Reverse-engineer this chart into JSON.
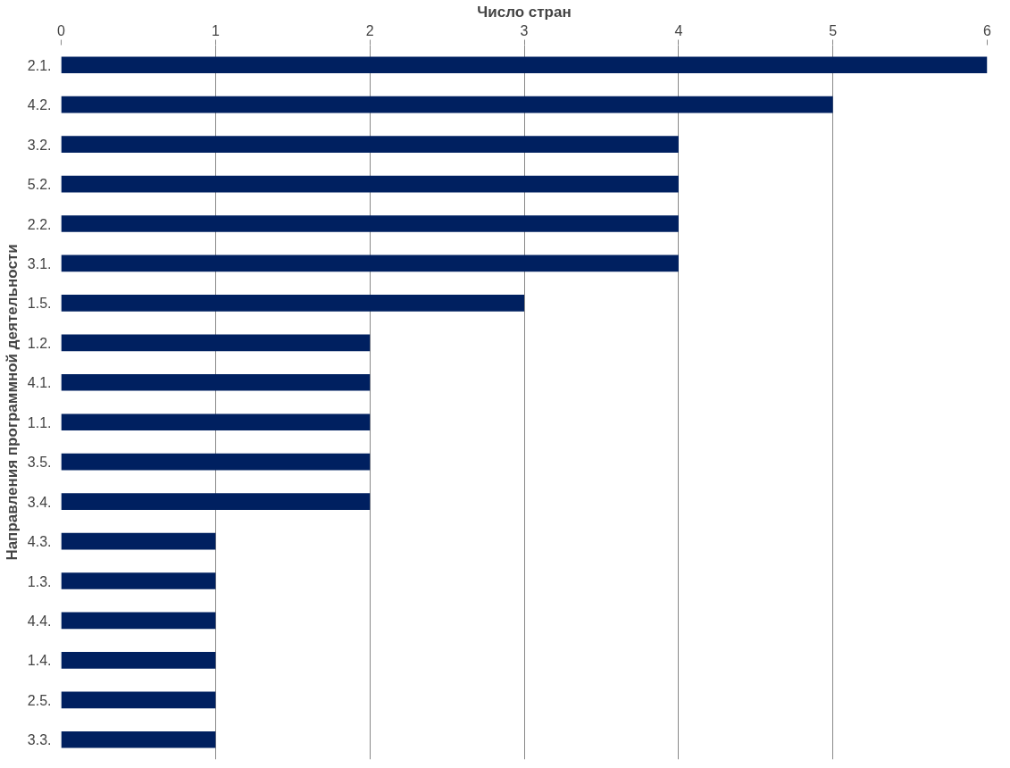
{
  "chart_data": {
    "type": "bar",
    "orientation": "horizontal",
    "xlabel": "Число стран",
    "ylabel": "Направления программной деятельности",
    "categories": [
      "2.1.",
      "4.2.",
      "3.2.",
      "5.2.",
      "2.2.",
      "3.1.",
      "1.5.",
      "1.2.",
      "4.1.",
      "1.1.",
      "3.5.",
      "3.4.",
      "4.3.",
      "1.3.",
      "4.4.",
      "1.4.",
      "2.5.",
      "3.3."
    ],
    "values": [
      6,
      5,
      4,
      4,
      4,
      4,
      3,
      2,
      2,
      2,
      2,
      2,
      1,
      1,
      1,
      1,
      1,
      1
    ],
    "color": "#002060",
    "xlim": [
      0,
      6
    ],
    "xticks": [
      0,
      1,
      2,
      3,
      4,
      5,
      6
    ],
    "grid": "x"
  }
}
